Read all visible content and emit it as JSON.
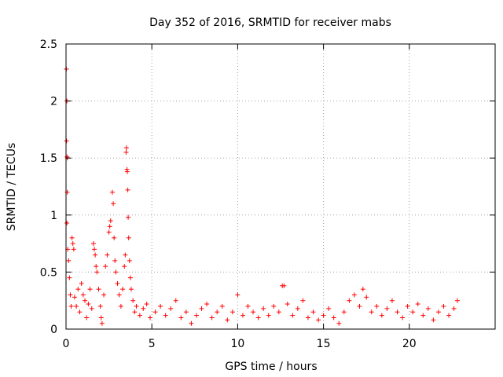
{
  "chart_data": {
    "type": "scatter",
    "title": "Day 352 of 2016, SRMTID for receiver mabs",
    "xlabel": "GPS time / hours",
    "ylabel": "SRMTID / TECUs",
    "xlim": [
      0,
      25
    ],
    "ylim": [
      0,
      2.5
    ],
    "x_ticks": [
      "0",
      "5",
      "10",
      "15",
      "20"
    ],
    "y_ticks": [
      "0",
      "0.5",
      "1",
      "1.5",
      "2",
      "2.5"
    ],
    "grid": true,
    "marker": "plus",
    "series": [
      {
        "name": "SRMTID",
        "color": "#ff0000",
        "points": [
          [
            0.02,
            2.28
          ],
          [
            0.05,
            2.0
          ],
          [
            0.03,
            1.65
          ],
          [
            0.06,
            1.51
          ],
          [
            0.08,
            1.5
          ],
          [
            0.07,
            1.2
          ],
          [
            0.05,
            0.93
          ],
          [
            0.1,
            0.7
          ],
          [
            0.15,
            0.6
          ],
          [
            0.2,
            0.45
          ],
          [
            0.25,
            0.3
          ],
          [
            0.3,
            0.2
          ],
          [
            0.35,
            0.8
          ],
          [
            0.4,
            0.75
          ],
          [
            0.45,
            0.7
          ],
          [
            0.5,
            0.28
          ],
          [
            0.6,
            0.2
          ],
          [
            0.7,
            0.35
          ],
          [
            0.8,
            0.15
          ],
          [
            0.9,
            0.4
          ],
          [
            1.0,
            0.3
          ],
          [
            1.1,
            0.25
          ],
          [
            1.2,
            0.1
          ],
          [
            1.3,
            0.22
          ],
          [
            1.4,
            0.35
          ],
          [
            1.5,
            0.18
          ],
          [
            1.6,
            0.75
          ],
          [
            1.65,
            0.7
          ],
          [
            1.7,
            0.65
          ],
          [
            1.75,
            0.55
          ],
          [
            1.8,
            0.5
          ],
          [
            1.9,
            0.35
          ],
          [
            2.0,
            0.2
          ],
          [
            2.05,
            0.1
          ],
          [
            2.1,
            0.05
          ],
          [
            2.2,
            0.3
          ],
          [
            2.3,
            0.55
          ],
          [
            2.4,
            0.65
          ],
          [
            2.5,
            0.85
          ],
          [
            2.55,
            0.9
          ],
          [
            2.6,
            0.95
          ],
          [
            2.7,
            1.2
          ],
          [
            2.75,
            1.1
          ],
          [
            2.8,
            0.8
          ],
          [
            2.85,
            0.6
          ],
          [
            2.9,
            0.5
          ],
          [
            3.0,
            0.4
          ],
          [
            3.1,
            0.3
          ],
          [
            3.2,
            0.2
          ],
          [
            3.3,
            0.35
          ],
          [
            3.4,
            0.55
          ],
          [
            3.45,
            0.65
          ],
          [
            3.5,
            1.55
          ],
          [
            3.52,
            1.59
          ],
          [
            3.55,
            1.4
          ],
          [
            3.57,
            1.38
          ],
          [
            3.6,
            1.22
          ],
          [
            3.62,
            0.98
          ],
          [
            3.65,
            0.8
          ],
          [
            3.7,
            0.6
          ],
          [
            3.75,
            0.45
          ],
          [
            3.8,
            0.35
          ],
          [
            3.9,
            0.25
          ],
          [
            4.0,
            0.15
          ],
          [
            4.1,
            0.2
          ],
          [
            4.3,
            0.12
          ],
          [
            4.5,
            0.18
          ],
          [
            4.7,
            0.22
          ],
          [
            4.9,
            0.1
          ],
          [
            5.2,
            0.15
          ],
          [
            5.5,
            0.2
          ],
          [
            5.8,
            0.12
          ],
          [
            6.1,
            0.18
          ],
          [
            6.4,
            0.25
          ],
          [
            6.7,
            0.1
          ],
          [
            7.0,
            0.15
          ],
          [
            7.3,
            0.05
          ],
          [
            7.6,
            0.12
          ],
          [
            7.9,
            0.18
          ],
          [
            8.2,
            0.22
          ],
          [
            8.5,
            0.1
          ],
          [
            8.8,
            0.15
          ],
          [
            9.1,
            0.2
          ],
          [
            9.4,
            0.08
          ],
          [
            9.7,
            0.15
          ],
          [
            10.0,
            0.3
          ],
          [
            10.3,
            0.12
          ],
          [
            10.6,
            0.2
          ],
          [
            10.9,
            0.15
          ],
          [
            11.2,
            0.1
          ],
          [
            11.5,
            0.18
          ],
          [
            11.8,
            0.12
          ],
          [
            12.1,
            0.2
          ],
          [
            12.4,
            0.15
          ],
          [
            12.6,
            0.38
          ],
          [
            12.7,
            0.38
          ],
          [
            12.9,
            0.22
          ],
          [
            13.2,
            0.12
          ],
          [
            13.5,
            0.18
          ],
          [
            13.8,
            0.25
          ],
          [
            14.1,
            0.1
          ],
          [
            14.4,
            0.15
          ],
          [
            14.7,
            0.08
          ],
          [
            15.0,
            0.12
          ],
          [
            15.3,
            0.18
          ],
          [
            15.6,
            0.1
          ],
          [
            15.9,
            0.05
          ],
          [
            16.2,
            0.15
          ],
          [
            16.5,
            0.25
          ],
          [
            16.8,
            0.3
          ],
          [
            17.1,
            0.2
          ],
          [
            17.3,
            0.35
          ],
          [
            17.5,
            0.28
          ],
          [
            17.8,
            0.15
          ],
          [
            18.1,
            0.2
          ],
          [
            18.4,
            0.12
          ],
          [
            18.7,
            0.18
          ],
          [
            19.0,
            0.25
          ],
          [
            19.3,
            0.15
          ],
          [
            19.6,
            0.1
          ],
          [
            19.9,
            0.2
          ],
          [
            20.2,
            0.15
          ],
          [
            20.5,
            0.22
          ],
          [
            20.8,
            0.12
          ],
          [
            21.1,
            0.18
          ],
          [
            21.4,
            0.08
          ],
          [
            21.7,
            0.15
          ],
          [
            22.0,
            0.2
          ],
          [
            22.3,
            0.12
          ],
          [
            22.6,
            0.18
          ],
          [
            22.8,
            0.25
          ]
        ]
      }
    ]
  }
}
